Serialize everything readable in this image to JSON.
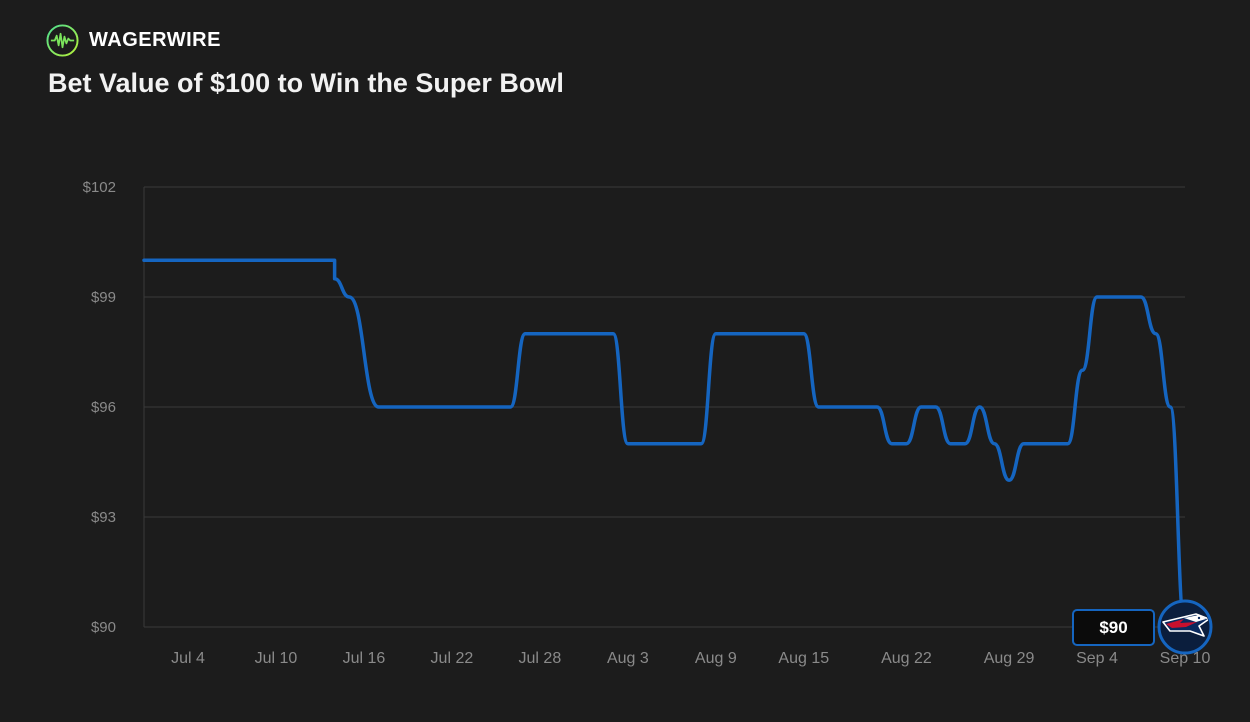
{
  "brand": {
    "name": "WAGERWIRE",
    "logo_icon": "pulse-wave-icon"
  },
  "colors": {
    "background": "#1c1c1c",
    "line": "#1565c0",
    "grid": "#3a3a3a",
    "tick_text": "#8a8a8a",
    "logo_ring": "#7be35c"
  },
  "chart_data": {
    "type": "line",
    "title": "Bet Value of $100 to Win the Super Bowl",
    "xlabel": "",
    "ylabel": "",
    "ylim": [
      90,
      102
    ],
    "xlim": [
      "Jul 1",
      "Sep 10"
    ],
    "y_ticks": [
      {
        "value": 102,
        "label": "$102"
      },
      {
        "value": 99,
        "label": "$99"
      },
      {
        "value": 96,
        "label": "$96"
      },
      {
        "value": 93,
        "label": "$93"
      },
      {
        "value": 90,
        "label": "$90"
      }
    ],
    "x_ticks": [
      {
        "day": 4,
        "label": "Jul 4"
      },
      {
        "day": 10,
        "label": "Jul 10"
      },
      {
        "day": 16,
        "label": "Jul 16"
      },
      {
        "day": 22,
        "label": "Jul 22"
      },
      {
        "day": 28,
        "label": "Jul 28"
      },
      {
        "day": 34,
        "label": "Aug 3"
      },
      {
        "day": 40,
        "label": "Aug 9"
      },
      {
        "day": 46,
        "label": "Aug 15"
      },
      {
        "day": 53,
        "label": "Aug 22"
      },
      {
        "day": 60,
        "label": "Aug 29"
      },
      {
        "day": 66,
        "label": "Sep 4"
      },
      {
        "day": 72,
        "label": "Sep 10"
      }
    ],
    "grid": true,
    "series": [
      {
        "x": [
          "Jul 1",
          "Jul 14",
          "Jul 14",
          "Jul 15",
          "Jul 15",
          "Jul 17",
          "Jul 26",
          "Jul 27",
          "Aug 2",
          "Aug 3",
          "Aug 5",
          "Aug 8",
          "Aug 9",
          "Aug 15",
          "Aug 16",
          "Aug 19",
          "Aug 20",
          "Aug 21",
          "Aug 22",
          "Aug 23",
          "Aug 24",
          "Aug 25",
          "Aug 26",
          "Aug 27",
          "Aug 28",
          "Aug 29",
          "Aug 30",
          "Sep 2",
          "Sep 3",
          "Sep 4",
          "Sep 6",
          "Sep 7",
          "Sep 8",
          "Sep 9",
          "Sep 10"
        ],
        "y": [
          100,
          100,
          99.5,
          99,
          99,
          96,
          96,
          98,
          98,
          95,
          95,
          95,
          98,
          98,
          96,
          96,
          96,
          95,
          95,
          96,
          96,
          95,
          95,
          96,
          95,
          94,
          95,
          95,
          97,
          99,
          99,
          99,
          98,
          96,
          90
        ],
        "color": "#1565c0"
      }
    ],
    "end_value_label": "$90",
    "end_marker": "new-england-patriots-logo"
  }
}
